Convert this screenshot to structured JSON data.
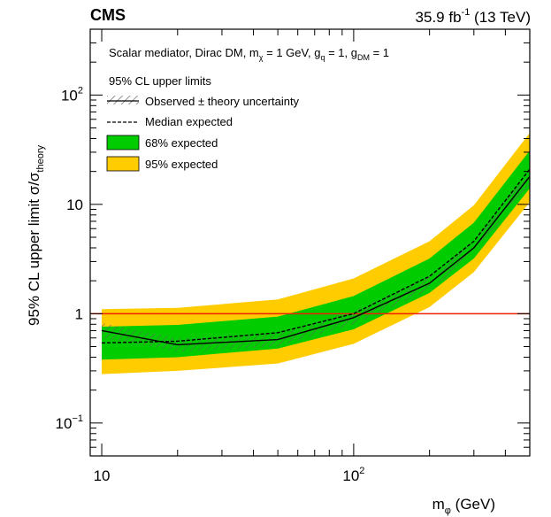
{
  "header": {
    "experiment": "CMS",
    "lumi_value": "35.9 fb",
    "lumi_exp": "-1",
    "lumi_energy": " (13 TeV)"
  },
  "annotation": {
    "p1": "Scalar mediator, Dirac DM, m",
    "p2": "χ",
    "p3": " = 1 GeV, g",
    "p4": "q",
    "p5": " = 1, g",
    "p6": "DM",
    "p7": " = 1"
  },
  "legend": {
    "header": "95% CL upper limits",
    "observed": "Observed ± theory uncertainty",
    "median": "Median expected",
    "band68": "68% expected",
    "band95": "95% expected"
  },
  "axes": {
    "xlabel_main": "m",
    "xlabel_sub": "φ",
    "xlabel_unit": " (GeV)",
    "ylabel_main": "95% CL upper limit σ/σ",
    "ylabel_sub": "theory",
    "xticks": [
      {
        "value": 10,
        "base": "10",
        "exp": ""
      },
      {
        "value": 100,
        "base": "10",
        "exp": "2"
      }
    ],
    "yticks": [
      {
        "value": 0.1,
        "base": "10",
        "exp": "−1"
      },
      {
        "value": 1,
        "base": "1",
        "exp": ""
      },
      {
        "value": 10,
        "base": "10",
        "exp": ""
      },
      {
        "value": 100,
        "base": "10",
        "exp": "2"
      }
    ]
  },
  "colors": {
    "band68": "#00cc00",
    "band95": "#ffcc00",
    "observed": "#000000",
    "expected": "#000000",
    "reference": "#ee2200",
    "hatch": "#666666"
  },
  "chart_data": {
    "type": "line",
    "title": "",
    "xlabel": "m_φ (GeV)",
    "ylabel": "95% CL upper limit σ/σ_theory",
    "xscale": "log",
    "yscale": "log",
    "xlim": [
      9,
      500
    ],
    "ylim": [
      0.05,
      400
    ],
    "x": [
      10,
      20,
      50,
      100,
      200,
      300,
      500
    ],
    "series": [
      {
        "name": "Observed ± theory uncertainty",
        "style": "solid",
        "values": [
          0.7,
          0.52,
          0.58,
          0.92,
          1.9,
          4.0,
          18
        ]
      },
      {
        "name": "Median expected",
        "style": "dashed",
        "values": [
          0.54,
          0.56,
          0.67,
          1.0,
          2.2,
          4.6,
          21
        ]
      }
    ],
    "observed_theory_band": {
      "low": [
        0.6,
        0.45,
        0.5,
        0.8,
        1.65,
        3.5,
        15.5
      ],
      "high": [
        0.82,
        0.6,
        0.66,
        1.06,
        2.2,
        4.6,
        21
      ]
    },
    "band68": {
      "low": [
        0.38,
        0.4,
        0.48,
        0.72,
        1.55,
        3.2,
        14
      ],
      "high": [
        0.76,
        0.79,
        0.94,
        1.45,
        3.2,
        6.8,
        31
      ]
    },
    "band95": {
      "low": [
        0.28,
        0.3,
        0.35,
        0.53,
        1.15,
        2.4,
        10.5
      ],
      "high": [
        1.1,
        1.13,
        1.35,
        2.1,
        4.6,
        9.8,
        45
      ]
    },
    "reference_line": {
      "y": 1
    },
    "grid": false,
    "legend_position": "top-left"
  }
}
